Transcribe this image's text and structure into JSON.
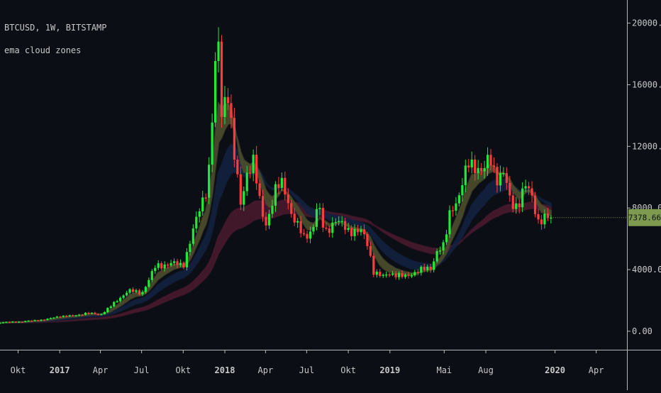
{
  "header": {
    "symbol_line": "BTCUSD, 1W, BITSTAMP",
    "indicator_line": "ema cloud zones"
  },
  "price_badge": {
    "text": "7378.66"
  },
  "colors": {
    "background": "#0b0e15",
    "up": "#22e83a",
    "down": "#ff3b3b",
    "axis": "#c8c8c8",
    "cloud_fast": "#4a4a2c",
    "cloud_mid": "#13213f",
    "cloud_slow": "#4a1a2e",
    "badge": "#7d9a4e"
  },
  "chart_data": {
    "type": "candlestick",
    "symbol": "BTCUSD",
    "interval": "1W",
    "exchange": "BITSTAMP",
    "indicator": "ema cloud zones",
    "last_price": 7378.66,
    "y_axis": {
      "min": -1200,
      "max": 21500,
      "ticks": [
        "20000.00",
        "16000.00",
        "12000.00",
        "8000.00",
        "4000.00",
        "0.00"
      ],
      "tick_values": [
        20000,
        16000,
        12000,
        8000,
        4000,
        0
      ]
    },
    "x_axis": {
      "start": "2016-08-22",
      "end": "2020-06-08",
      "labels": [
        {
          "date": "2016-10-01",
          "text": "Okt",
          "bold": false
        },
        {
          "date": "2017-01-01",
          "text": "2017",
          "bold": true
        },
        {
          "date": "2017-04-01",
          "text": "Apr",
          "bold": false
        },
        {
          "date": "2017-07-01",
          "text": "Jul",
          "bold": false
        },
        {
          "date": "2017-10-01",
          "text": "Okt",
          "bold": false
        },
        {
          "date": "2018-01-01",
          "text": "2018",
          "bold": true
        },
        {
          "date": "2018-04-01",
          "text": "Apr",
          "bold": false
        },
        {
          "date": "2018-07-01",
          "text": "Jul",
          "bold": false
        },
        {
          "date": "2018-10-01",
          "text": "Okt",
          "bold": false
        },
        {
          "date": "2019-01-01",
          "text": "2019",
          "bold": true
        },
        {
          "date": "2019-05-01",
          "text": "Mai",
          "bold": false
        },
        {
          "date": "2019-08-01",
          "text": "Aug",
          "bold": false
        },
        {
          "date": "2020-01-01",
          "text": "2020",
          "bold": true
        },
        {
          "date": "2020-04-01",
          "text": "Apr",
          "bold": false
        }
      ]
    },
    "close_anchors": [
      [
        "2016-08-22",
        575
      ],
      [
        "2016-10-01",
        610
      ],
      [
        "2016-12-01",
        760
      ],
      [
        "2017-01-01",
        980
      ],
      [
        "2017-02-01",
        1000
      ],
      [
        "2017-03-01",
        1180
      ],
      [
        "2017-04-01",
        1080
      ],
      [
        "2017-05-01",
        1800
      ],
      [
        "2017-06-01",
        2650
      ],
      [
        "2017-07-01",
        2450
      ],
      [
        "2017-08-01",
        4200
      ],
      [
        "2017-09-01",
        4400
      ],
      [
        "2017-10-01",
        4300
      ],
      [
        "2017-11-01",
        7400
      ],
      [
        "2017-11-25",
        9700
      ],
      [
        "2017-12-10",
        16500
      ],
      [
        "2017-12-17",
        19200
      ],
      [
        "2017-12-24",
        14000
      ],
      [
        "2018-01-07",
        16000
      ],
      [
        "2018-01-21",
        11500
      ],
      [
        "2018-02-05",
        8200
      ],
      [
        "2018-02-20",
        10500
      ],
      [
        "2018-03-05",
        11000
      ],
      [
        "2018-03-20",
        8200
      ],
      [
        "2018-04-01",
        6900
      ],
      [
        "2018-04-25",
        9300
      ],
      [
        "2018-05-10",
        9600
      ],
      [
        "2018-06-01",
        7300
      ],
      [
        "2018-06-25",
        6100
      ],
      [
        "2018-07-15",
        6700
      ],
      [
        "2018-07-25",
        8200
      ],
      [
        "2018-08-10",
        6400
      ],
      [
        "2018-09-01",
        7200
      ],
      [
        "2018-10-01",
        6600
      ],
      [
        "2018-11-01",
        6400
      ],
      [
        "2018-11-15",
        5500
      ],
      [
        "2018-11-25",
        3900
      ],
      [
        "2018-12-15",
        3500
      ],
      [
        "2019-01-01",
        3800
      ],
      [
        "2019-02-01",
        3500
      ],
      [
        "2019-03-01",
        3900
      ],
      [
        "2019-04-01",
        4100
      ],
      [
        "2019-04-15",
        5200
      ],
      [
        "2019-05-01",
        5500
      ],
      [
        "2019-05-15",
        8000
      ],
      [
        "2019-06-01",
        8600
      ],
      [
        "2019-06-25",
        11000
      ],
      [
        "2019-07-10",
        10800
      ],
      [
        "2019-07-25",
        10200
      ],
      [
        "2019-08-10",
        11300
      ],
      [
        "2019-08-25",
        10000
      ],
      [
        "2019-09-10",
        10200
      ],
      [
        "2019-09-25",
        8300
      ],
      [
        "2019-10-10",
        8200
      ],
      [
        "2019-10-27",
        9400
      ],
      [
        "2019-11-10",
        8800
      ],
      [
        "2019-11-25",
        7200
      ],
      [
        "2019-12-10",
        7300
      ],
      [
        "2019-12-29",
        7378.66
      ]
    ]
  }
}
